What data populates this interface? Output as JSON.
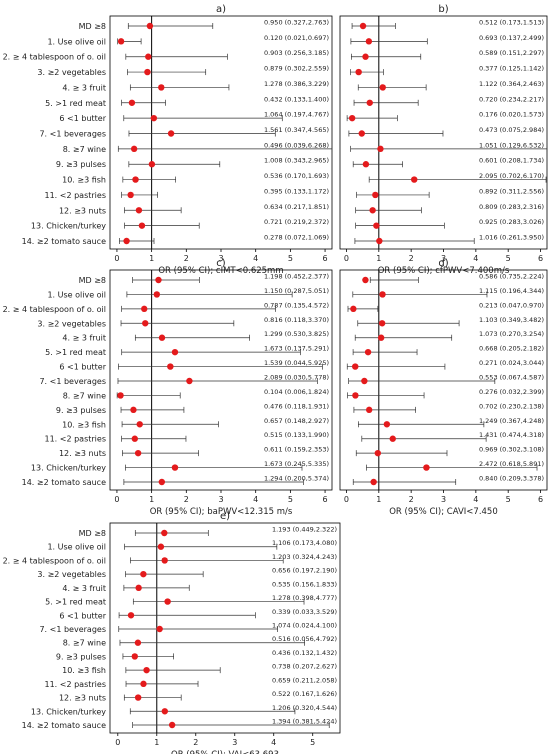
{
  "items": [
    "MD ≥8",
    "1. Use olive oil",
    "2. ≥ 4 tablespoon of o. oil",
    "3. ≥2 vegetables",
    "4. ≥ 3 fruit",
    "5. >1 red meat",
    "6 <1 butter",
    "7. <1 beverages",
    "8. ≥7 wine",
    "9. ≥3 pulses",
    "10. ≥3 fish",
    "11. <2 pastries",
    "12. ≥3 nuts",
    "13. Chicken/turkey",
    "14. ≥2 tomato sauce"
  ],
  "chart_data": [
    {
      "type": "scatter",
      "panel": "a)",
      "xlabel": "OR (95% CI); cIMT<0.625mm",
      "xlim": [
        -0.2,
        6.2
      ],
      "xticks": [
        0,
        1,
        2,
        3,
        4,
        5,
        6
      ],
      "reference_line": 1,
      "or": [
        0.95,
        0.12,
        0.903,
        0.879,
        1.278,
        0.432,
        1.064,
        1.561,
        0.496,
        1.008,
        0.536,
        0.395,
        0.634,
        0.721,
        0.278
      ],
      "ci_low": [
        0.327,
        0.021,
        0.256,
        0.302,
        0.386,
        0.133,
        0.197,
        0.347,
        0.039,
        0.343,
        0.17,
        0.133,
        0.217,
        0.219,
        0.072
      ],
      "ci_high": [
        2.763,
        0.697,
        3.185,
        2.559,
        3.229,
        1.4,
        4.767,
        4.565,
        6.268,
        2.965,
        1.693,
        1.172,
        1.851,
        2.372,
        1.069
      ],
      "labels": [
        "0.950 (0.327,2.763)",
        "0.120 (0.021,0.697)",
        "0.903 (0.256,3.185)",
        "0.879 (0.302,2.559)",
        "1.278 (0.386,3.229)",
        "0.432 (0.133,1.400)",
        "1.064 (0.197,4.767)",
        "1.561 (0.347,4.565)",
        "0.496 (0.039,6.268)",
        "1.008 (0.343,2.965)",
        "0.536 (0.170,1.693)",
        "0.395 (0.133,1.172)",
        "0.634 (0.217,1.851)",
        "0.721 (0.219,2.372)",
        "0.278 (0.072,1.069)"
      ]
    },
    {
      "type": "scatter",
      "panel": "b)",
      "xlabel": "OR (95% CI); cfPWV<7.400m/s",
      "xlim": [
        -0.2,
        6.2
      ],
      "xticks": [
        0,
        1,
        2,
        3,
        4,
        5,
        6
      ],
      "reference_line": 1,
      "or": [
        0.512,
        0.693,
        0.589,
        0.377,
        1.122,
        0.72,
        0.176,
        0.473,
        1.051,
        0.601,
        2.095,
        0.892,
        0.809,
        0.925,
        1.016
      ],
      "ci_low": [
        0.173,
        0.137,
        0.151,
        0.125,
        0.364,
        0.234,
        0.02,
        0.075,
        0.129,
        0.208,
        0.702,
        0.311,
        0.283,
        0.283,
        0.261
      ],
      "ci_high": [
        1.513,
        2.499,
        2.297,
        1.142,
        2.463,
        2.217,
        1.573,
        2.984,
        6.532,
        1.734,
        6.17,
        2.556,
        2.316,
        3.026,
        3.95
      ],
      "labels": [
        "0.512 (0.173,1.513)",
        "0.693 (0.137,2.499)",
        "0.589 (0.151,2.297)",
        "0.377 (0.125,1.142)",
        "1.122 (0.364,2.463)",
        "0.720 (0.234,2.217)",
        "0.176 (0.020,1.573)",
        "0.473 (0.075,2.984)",
        "1.051 (0.129,6.532)",
        "0.601 (0.208,1.734)",
        "2.095 (0.702,6.170)",
        "0.892 (0.311,2.556)",
        "0.809 (0.283,2.316)",
        "0.925 (0.283,3.026)",
        "1.016 (0.261,3.950)"
      ]
    },
    {
      "type": "scatter",
      "panel": "c)",
      "xlabel": "OR (95% CI); baPWV<12.315 m/s",
      "xlim": [
        -0.2,
        6.2
      ],
      "xticks": [
        0,
        1,
        2,
        3,
        4,
        5,
        6
      ],
      "reference_line": 1,
      "or": [
        1.198,
        1.15,
        0.787,
        0.816,
        1.299,
        1.673,
        1.539,
        2.089,
        0.104,
        0.476,
        0.657,
        0.515,
        0.611,
        1.673,
        1.294
      ],
      "ci_low": [
        0.452,
        0.287,
        0.135,
        0.118,
        0.53,
        0.137,
        0.044,
        0.03,
        0.006,
        0.118,
        0.148,
        0.133,
        0.159,
        0.245,
        0.2
      ],
      "ci_high": [
        2.377,
        5.051,
        4.572,
        3.37,
        3.825,
        5.291,
        5.925,
        5.778,
        1.824,
        1.931,
        2.927,
        1.99,
        2.353,
        5.335,
        5.374
      ],
      "labels": [
        "1.198 (0.452,2.377)",
        "1.150 (0.287,5.051)",
        "0.787 (0.135,4.572)",
        "0.816 (0.118,3.370)",
        "1.299 (0.530,3.825)",
        "1.673 (0.137,5.291)",
        "1.539 (0.044,5.925)",
        "2.089 (0.030,5.778)",
        "0.104 (0.006,1.824)",
        "0.476 (0.118,1.931)",
        "0.657 (0.148,2.927)",
        "0.515 (0.133,1.990)",
        "0.611 (0.159,2.353)",
        "1.673 (0.245,5.335)",
        "1.294 (0.200,5.374)"
      ]
    },
    {
      "type": "scatter",
      "panel": "d)",
      "xlabel": "OR (95% CI); CAVI<7.450",
      "xlim": [
        -0.2,
        6.2
      ],
      "xticks": [
        0,
        1,
        2,
        3,
        4,
        5,
        6
      ],
      "reference_line": 1,
      "or": [
        0.586,
        1.115,
        0.213,
        1.103,
        1.073,
        0.668,
        0.271,
        0.553,
        0.276,
        0.702,
        1.249,
        1.431,
        0.969,
        2.472,
        0.84
      ],
      "ci_low": [
        0.735,
        0.196,
        0.047,
        0.349,
        0.27,
        0.205,
        0.024,
        0.067,
        0.032,
        0.23,
        0.367,
        0.474,
        0.302,
        0.618,
        0.209
      ],
      "ci_high": [
        2.224,
        4.344,
        0.97,
        3.482,
        3.254,
        2.182,
        3.044,
        4.587,
        2.399,
        2.138,
        4.248,
        4.318,
        3.108,
        5.891,
        3.378
      ],
      "labels": [
        "0.586 (0.735,2.224)",
        "1.115 (0.196,4.344)",
        "0.213 (0.047,0.970)",
        "1.103 (0.349,3.482)",
        "1.073 (0.270,3.254)",
        "0.668 (0.205,2.182)",
        "0.271 (0.024,3.044)",
        "0.553 (0.067,4.587)",
        "0.276 (0.032,2.399)",
        "0.702 (0.230,2.138)",
        "1.249 (0.367,4.248)",
        "1.431 (0.474,4.318)",
        "0.969 (0.302,3.108)",
        "2.472 (0.618,5.891)",
        "0.840 (0.209,3.378)"
      ]
    },
    {
      "type": "scatter",
      "panel": "e)",
      "xlabel": "OR (95% CI); VAI<63.693",
      "xlim": [
        -0.2,
        5.7
      ],
      "xticks": [
        0,
        1,
        2,
        3,
        4,
        5
      ],
      "reference_line": 1,
      "or": [
        1.193,
        1.106,
        1.203,
        0.656,
        0.535,
        1.278,
        0.339,
        1.074,
        0.516,
        0.436,
        0.738,
        0.659,
        0.522,
        1.206,
        1.394
      ],
      "ci_low": [
        0.449,
        0.173,
        0.324,
        0.197,
        0.156,
        0.398,
        0.033,
        0.024,
        0.056,
        0.132,
        0.207,
        0.211,
        0.167,
        0.32,
        0.381
      ],
      "ci_high": [
        2.322,
        4.08,
        4.243,
        2.19,
        1.833,
        4.777,
        3.529,
        4.1,
        4.792,
        1.432,
        2.627,
        2.058,
        1.626,
        4.544,
        5.424
      ],
      "labels": [
        "1.193 (0.449,2.322)",
        "1.106 (0.173,4.080)",
        "1.203 (0.324,4.243)",
        "0.656 (0.197,2.190)",
        "0.535 (0.156,1.833)",
        "1.278 (0.398,4.777)",
        "0.339 (0.033,3.529)",
        "1.074 (0.024,4.100)",
        "0.516 (0.056,4.792)",
        "0.436 (0.132,1.432)",
        "0.738 (0.207,2.627)",
        "0.659 (0.211,2.058)",
        "0.522 (0.167,1.626)",
        "1.206 (0.320,4.544)",
        "1.394 (0.381,5.424)"
      ]
    }
  ],
  "style": {
    "point_color": "#e41a1c",
    "line_color": "#333333",
    "frame_color": "#000000"
  }
}
